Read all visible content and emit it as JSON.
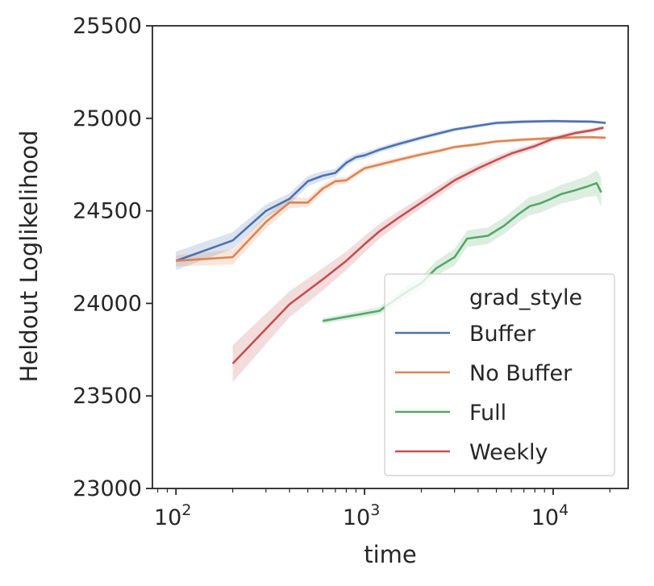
{
  "chart_data": {
    "type": "line",
    "xlabel": "time",
    "ylabel": "Heldout Loglikelihood",
    "xscale": "log",
    "xlim": [
      75,
      25000
    ],
    "ylim": [
      23000,
      25500
    ],
    "yticks": [
      23000,
      23500,
      24000,
      24500,
      25000,
      25500
    ],
    "ytick_labels": [
      "23000",
      "23500",
      "24000",
      "24500",
      "25000",
      "25500"
    ],
    "xticks": [
      {
        "value": 100,
        "base": "10",
        "exp": "2"
      },
      {
        "value": 1000,
        "base": "10",
        "exp": "3"
      },
      {
        "value": 10000,
        "base": "10",
        "exp": "4"
      }
    ],
    "grid": false,
    "legend": {
      "title": "grad_style",
      "placement": "lower-right"
    },
    "series": [
      {
        "name": "Buffer",
        "color": "#4c72b0",
        "x": [
          100,
          200,
          300,
          400,
          500,
          600,
          700,
          800,
          900,
          1000,
          1200,
          1500,
          2000,
          2500,
          3000,
          4000,
          5000,
          7000,
          10000,
          13000,
          16000,
          19000
        ],
        "y": [
          24230,
          24340,
          24500,
          24565,
          24660,
          24690,
          24705,
          24760,
          24790,
          24800,
          24830,
          24860,
          24895,
          24920,
          24940,
          24960,
          24975,
          24982,
          24985,
          24983,
          24982,
          24975
        ],
        "band": [
          50,
          45,
          35,
          30,
          28,
          25,
          22,
          20,
          18,
          18,
          15,
          15,
          12,
          12,
          10,
          10,
          10,
          10,
          8,
          8,
          8,
          8
        ]
      },
      {
        "name": "No Buffer",
        "color": "#dd8452",
        "x": [
          100,
          200,
          300,
          400,
          500,
          600,
          700,
          800,
          900,
          1000,
          1200,
          1500,
          2000,
          2500,
          3000,
          4000,
          5000,
          7000,
          10000,
          13000,
          16000,
          19000
        ],
        "y": [
          24230,
          24250,
          24440,
          24545,
          24545,
          24620,
          24660,
          24665,
          24700,
          24730,
          24750,
          24775,
          24805,
          24825,
          24845,
          24860,
          24875,
          24885,
          24893,
          24897,
          24898,
          24895
        ],
        "band": [
          30,
          40,
          35,
          30,
          25,
          22,
          20,
          18,
          18,
          16,
          15,
          14,
          12,
          12,
          10,
          10,
          10,
          10,
          8,
          8,
          8,
          8
        ]
      },
      {
        "name": "Full",
        "color": "#55a868",
        "x": [
          600,
          1200,
          1600,
          2000,
          2400,
          3000,
          3500,
          4500,
          5500,
          6500,
          7500,
          8500,
          9500,
          11000,
          13000,
          15000,
          17000,
          18000
        ],
        "y": [
          23905,
          23960,
          24050,
          24110,
          24190,
          24250,
          24350,
          24365,
          24420,
          24480,
          24525,
          24540,
          24560,
          24590,
          24610,
          24630,
          24650,
          24600
        ],
        "band": [
          15,
          20,
          30,
          35,
          40,
          45,
          45,
          45,
          45,
          45,
          50,
          50,
          50,
          50,
          55,
          55,
          70,
          80
        ]
      },
      {
        "name": "Weekly",
        "color": "#c44e52",
        "x": [
          200,
          400,
          600,
          800,
          1000,
          1200,
          1500,
          2000,
          2500,
          3000,
          4000,
          5000,
          6000,
          8000,
          10000,
          13000,
          16000,
          18500
        ],
        "y": [
          23675,
          23995,
          24130,
          24230,
          24320,
          24390,
          24460,
          24545,
          24610,
          24665,
          24730,
          24775,
          24810,
          24850,
          24890,
          24920,
          24935,
          24950
        ],
        "band": [
          100,
          70,
          60,
          50,
          45,
          40,
          35,
          30,
          28,
          25,
          22,
          20,
          18,
          16,
          15,
          12,
          12,
          10
        ]
      }
    ]
  }
}
